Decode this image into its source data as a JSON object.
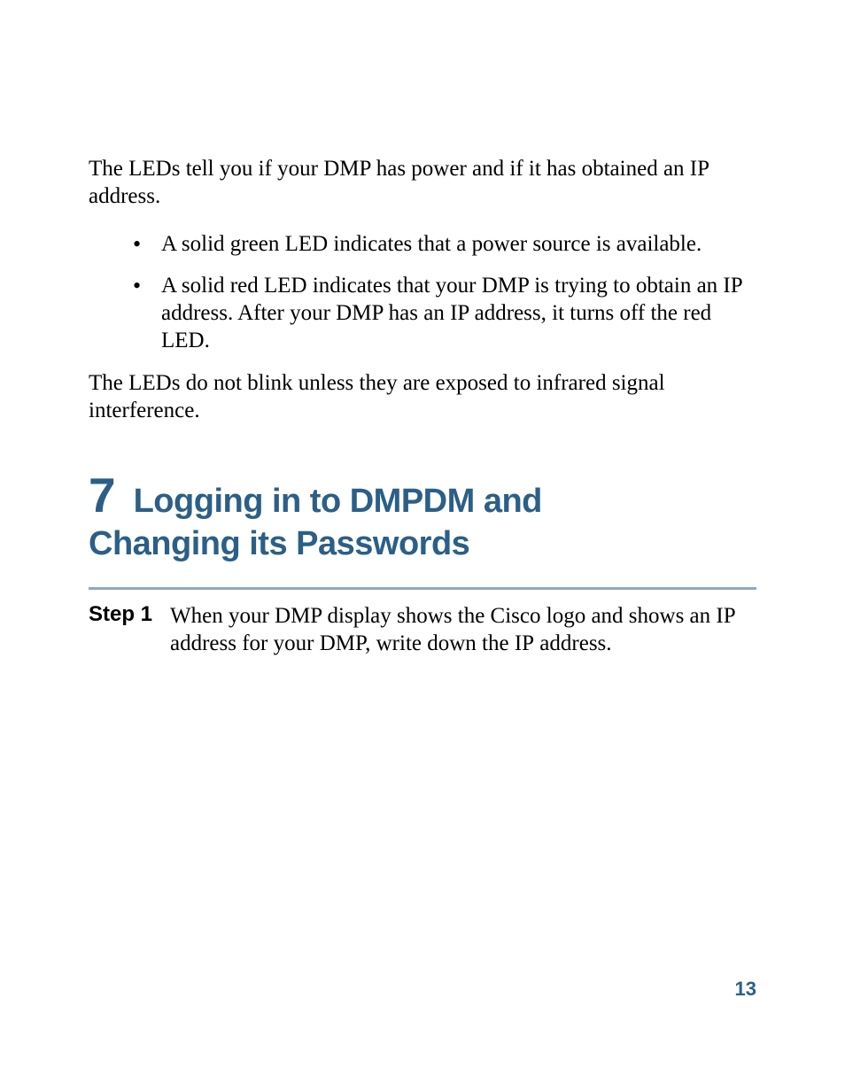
{
  "intro": "The LEDs tell you if your DMP has power and if it has obtained an IP address.",
  "bullets": [
    "A solid green LED indicates that a power source is available.",
    "A solid red LED indicates that your DMP is trying to obtain an IP address. After your DMP has an IP address, it turns off the red LED."
  ],
  "afterList": "The LEDs do not blink unless they are exposed to infrared signal interference.",
  "section": {
    "number": "7",
    "titleLine1": "Logging in to DMPDM and",
    "titleLine2": "Changing its Passwords"
  },
  "step": {
    "label": "Step 1",
    "text": "When your DMP display shows the Cisco logo and shows an IP address for your DMP, write down the IP address."
  },
  "pageNumber": "13",
  "colors": {
    "heading": "#2b5f87",
    "divider": "#8fa9c5",
    "text": "#000000",
    "background": "#ffffff"
  },
  "fonts": {
    "body": "Times New Roman",
    "heading": "Arial"
  }
}
